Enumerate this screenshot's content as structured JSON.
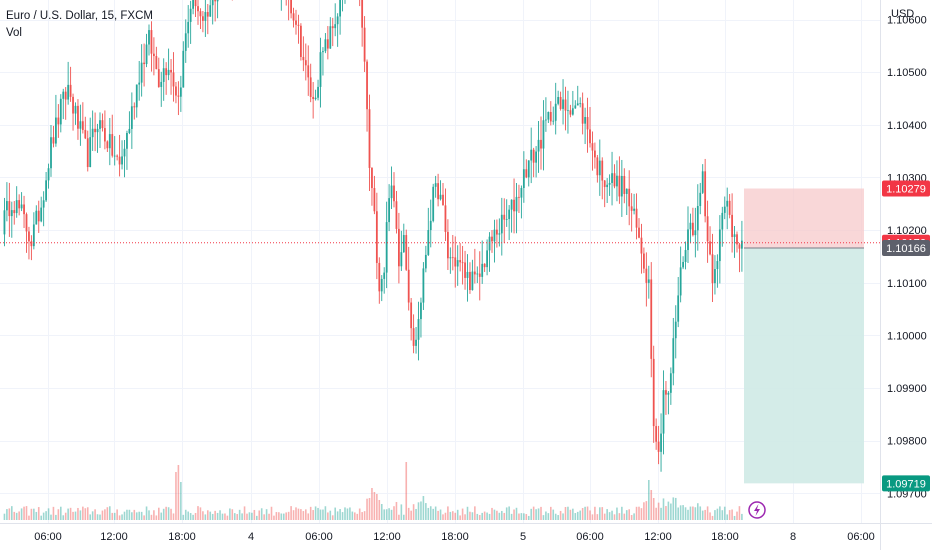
{
  "header": {
    "symbol_title": "Euro / U.S. Dollar, 15, FXCM",
    "volume_label": "Vol",
    "currency": "USD"
  },
  "colors": {
    "up": "#26a69a",
    "down": "#ef5350",
    "stop_zone": "#f7c9cb",
    "target_zone": "#cfeae5",
    "stop_badge": "#f23645",
    "last_badge": "#f23645",
    "entry_badge": "#5d606b",
    "target_badge": "#089981",
    "lightning_icon": "#9c27b0"
  },
  "chart_data": {
    "type": "candlestick",
    "title": "Euro / U.S. Dollar, 15, FXCM",
    "ylabel": "USD",
    "ylim": [
      1.097,
      1.107
    ],
    "grid": true,
    "y_ticks": [
      "1.10600",
      "1.10500",
      "1.10400",
      "1.10300",
      "1.10200",
      "1.10100",
      "1.10000",
      "1.09900",
      "1.09800",
      "1.09700"
    ],
    "x_ticks": [
      "06:00",
      "12:00",
      "18:00",
      "4",
      "06:00",
      "12:00",
      "18:00",
      "5",
      "06:00",
      "12:00",
      "18:00",
      "8",
      "06:00"
    ],
    "price_markers": [
      {
        "label": "1.10279",
        "value": 1.10279,
        "role": "stop"
      },
      {
        "label": "1.10176",
        "value": 1.10176,
        "role": "last"
      },
      {
        "label": "1.10166",
        "value": 1.10166,
        "role": "entry"
      },
      {
        "label": "1.09719",
        "value": 1.09719,
        "role": "target"
      }
    ],
    "short_position": {
      "entry": 1.10166,
      "stop": 1.10279,
      "target": 1.09719
    },
    "close_path": [
      [
        0,
        1.1021
      ],
      [
        4,
        1.1026
      ],
      [
        8,
        1.1023
      ],
      [
        12,
        1.1018
      ],
      [
        16,
        1.1025
      ],
      [
        20,
        1.1036
      ],
      [
        24,
        1.1043
      ],
      [
        27,
        1.1047
      ],
      [
        31,
        1.104
      ],
      [
        35,
        1.1034
      ],
      [
        39,
        1.1041
      ],
      [
        44,
        1.1036
      ],
      [
        48,
        1.1032
      ],
      [
        52,
        1.104
      ],
      [
        56,
        1.105
      ],
      [
        60,
        1.1056
      ],
      [
        64,
        1.1049
      ],
      [
        68,
        1.1052
      ],
      [
        72,
        1.1045
      ],
      [
        75,
        1.1057
      ],
      [
        78,
        1.1066
      ],
      [
        82,
        1.1058
      ],
      [
        86,
        1.1063
      ],
      [
        90,
        1.107
      ],
      [
        94,
        1.1069
      ],
      [
        98,
        1.1072
      ],
      [
        102,
        1.1071
      ],
      [
        108,
        1.1073
      ],
      [
        112,
        1.1068
      ],
      [
        116,
        1.1066
      ],
      [
        120,
        1.106
      ],
      [
        124,
        1.105
      ],
      [
        127,
        1.1044
      ],
      [
        130,
        1.1052
      ],
      [
        134,
        1.1057
      ],
      [
        138,
        1.1063
      ],
      [
        142,
        1.1071
      ],
      [
        145,
        1.1069
      ],
      [
        148,
        1.1052
      ],
      [
        150,
        1.1032
      ],
      [
        152,
        1.1022
      ],
      [
        154,
        1.101
      ],
      [
        156,
        1.1013
      ],
      [
        158,
        1.1028
      ],
      [
        160,
        1.1025
      ],
      [
        162,
        1.1015
      ],
      [
        164,
        1.102
      ],
      [
        166,
        1.1008
      ],
      [
        168,
        1.0997
      ],
      [
        170,
        1.1003
      ],
      [
        172,
        1.1011
      ],
      [
        174,
        1.1021
      ],
      [
        176,
        1.1026
      ],
      [
        178,
        1.1028
      ],
      [
        180,
        1.1023
      ],
      [
        182,
        1.1015
      ],
      [
        186,
        1.1014
      ],
      [
        190,
        1.1011
      ],
      [
        194,
        1.101
      ],
      [
        198,
        1.1016
      ],
      [
        202,
        1.102
      ],
      [
        206,
        1.1022
      ],
      [
        210,
        1.1026
      ],
      [
        214,
        1.1032
      ],
      [
        218,
        1.1035
      ],
      [
        222,
        1.104
      ],
      [
        226,
        1.1044
      ],
      [
        228,
        1.1043
      ],
      [
        232,
        1.1044
      ],
      [
        236,
        1.1043
      ],
      [
        240,
        1.1038
      ],
      [
        242,
        1.1033
      ],
      [
        246,
        1.103
      ],
      [
        250,
        1.1029
      ],
      [
        254,
        1.1028
      ],
      [
        258,
        1.1022
      ],
      [
        262,
        1.1014
      ],
      [
        264,
        1.101
      ],
      [
        266,
        1.0985
      ],
      [
        268,
        1.0977
      ],
      [
        270,
        1.099
      ],
      [
        272,
        1.0988
      ],
      [
        274,
        1.0998
      ],
      [
        276,
        1.1008
      ],
      [
        278,
        1.1015
      ],
      [
        280,
        1.102
      ],
      [
        282,
        1.1021
      ],
      [
        284,
        1.1023
      ],
      [
        286,
        1.1031
      ],
      [
        288,
        1.1018
      ],
      [
        290,
        1.1012
      ],
      [
        292,
        1.1016
      ],
      [
        294,
        1.1022
      ],
      [
        296,
        1.1025
      ],
      [
        298,
        1.102
      ],
      [
        300,
        1.1019
      ],
      [
        302,
        1.1018
      ]
    ],
    "volume_spikes": [
      [
        71,
        48
      ],
      [
        72,
        55
      ],
      [
        73,
        38
      ],
      [
        150,
        22
      ],
      [
        151,
        32
      ],
      [
        152,
        28
      ],
      [
        153,
        26
      ],
      [
        154,
        20
      ],
      [
        155,
        16
      ],
      [
        165,
        58
      ],
      [
        264,
        40
      ],
      [
        265,
        30
      ],
      [
        266,
        22
      ]
    ]
  }
}
